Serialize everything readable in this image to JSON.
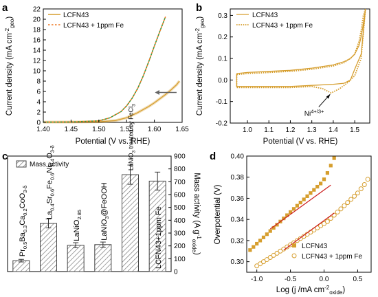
{
  "colors": {
    "primary": "#d69e2e",
    "fe": "#ee7721",
    "fe_a": "#2f9a3e",
    "fit": "#cc1d1d",
    "axis": "#000000",
    "bar_fill": "#ffffff",
    "bar_hatch": "#7a7a7a"
  },
  "chart_data": [
    {
      "panel": "a",
      "type": "line",
      "xlabel": "Potential (V vs. RHE)",
      "ylabel": "Current density (mA cm",
      "ylabel_sup": "-2",
      "ylabel_sub": "geo",
      "ylabel_end": ")",
      "xlim": [
        1.4,
        1.65
      ],
      "ylim": [
        0,
        22
      ],
      "xticks": [
        "1.40",
        "1.45",
        "1.50",
        "1.55",
        "1.60",
        "1.65"
      ],
      "yticks": [
        "0",
        "2",
        "4",
        "6",
        "8",
        "10",
        "12",
        "14",
        "16",
        "18",
        "20",
        "22"
      ],
      "legend_position": "top-left",
      "series": [
        {
          "name": "LCFN43",
          "style": "solid",
          "x": [
            1.4,
            1.45,
            1.5,
            1.53,
            1.55,
            1.57,
            1.59,
            1.6,
            1.61,
            1.62,
            1.63,
            1.64,
            1.645
          ],
          "y": [
            0.05,
            0.07,
            0.12,
            0.35,
            0.9,
            1.9,
            3.1,
            3.8,
            4.6,
            5.4,
            6.3,
            7.3,
            8.0
          ]
        },
        {
          "name": "LCFN43 + 1ppm Fe",
          "style": "dotted",
          "x": [
            1.4,
            1.45,
            1.5,
            1.52,
            1.54,
            1.55,
            1.56,
            1.57,
            1.58,
            1.59,
            1.6,
            1.61,
            1.62
          ],
          "y": [
            0.05,
            0.08,
            0.3,
            0.9,
            2.1,
            3.2,
            4.7,
            6.6,
            9.0,
            11.8,
            14.8,
            17.7,
            20.5
          ]
        }
      ]
    },
    {
      "panel": "b",
      "type": "line",
      "xlabel": "Potential (V vs. RHE)",
      "ylabel": "Current density (mA cm",
      "ylabel_sup": "-2",
      "ylabel_sub": "geo",
      "ylabel_end": ")",
      "xlim": [
        0.92,
        1.57
      ],
      "ylim": [
        -0.2,
        0.33
      ],
      "xticks": [
        "1.0",
        "1.1",
        "1.2",
        "1.3",
        "1.4",
        "1.5"
      ],
      "yticks": [
        "-0.2",
        "-0.1",
        "0.0",
        "0.1",
        "0.2",
        "0.3"
      ],
      "legend_position": "top-left",
      "annotation": {
        "text_main": "Ni",
        "text_sup": "4+/3+",
        "x": 1.39,
        "y": -0.055
      },
      "series": [
        {
          "name": "LCFN43",
          "style": "solid",
          "x": [
            0.95,
            1.0,
            1.1,
            1.2,
            1.3,
            1.4,
            1.45,
            1.48,
            1.5,
            1.51,
            1.52,
            1.53,
            1.54,
            1.55,
            1.53,
            1.5,
            1.48,
            1.45,
            1.4,
            1.3,
            1.2,
            1.1,
            1.0,
            0.95,
            0.95
          ],
          "y": [
            0.03,
            0.035,
            0.04,
            0.045,
            0.055,
            0.07,
            0.085,
            0.1,
            0.12,
            0.14,
            0.16,
            0.2,
            0.26,
            0.33,
            0.12,
            0.05,
            0.0,
            -0.015,
            -0.02,
            -0.025,
            -0.03,
            -0.03,
            -0.03,
            -0.03,
            0.03
          ]
        },
        {
          "name": "LCFN43 + 1ppm Fe",
          "style": "dotted",
          "x": [
            0.95,
            1.0,
            1.1,
            1.2,
            1.3,
            1.4,
            1.45,
            1.48,
            1.5,
            1.51,
            1.52,
            1.53,
            1.54,
            1.55,
            1.53,
            1.5,
            1.47,
            1.43,
            1.39,
            1.35,
            1.3,
            1.2,
            1.1,
            1.0,
            0.95,
            0.95
          ],
          "y": [
            0.025,
            0.03,
            0.035,
            0.04,
            0.05,
            0.065,
            0.08,
            0.1,
            0.12,
            0.15,
            0.18,
            0.23,
            0.3,
            0.33,
            0.1,
            0.02,
            -0.01,
            -0.04,
            -0.06,
            -0.04,
            -0.03,
            -0.035,
            -0.035,
            -0.035,
            -0.035,
            0.025
          ]
        }
      ]
    },
    {
      "panel": "c",
      "type": "bar",
      "ylabel": "Mass activity (A g",
      "ylabel_sup": "-1",
      "ylabel_sub": "oxide",
      "ylabel_end": ")",
      "ylim": [
        0,
        900
      ],
      "yticks": [
        "0",
        "100",
        "200",
        "300",
        "400",
        "500",
        "600",
        "700",
        "800",
        "900"
      ],
      "legend": "Mass activity",
      "legend_position": "top-left",
      "categories": [
        {
          "parts": [
            [
              "Pr",
              "n"
            ],
            [
              "0.5",
              "sub"
            ],
            [
              "Ba",
              "n"
            ],
            [
              "0.3",
              "sub"
            ],
            [
              "Ca",
              "n"
            ],
            [
              "0.2",
              "sub"
            ],
            [
              "CoO",
              "n"
            ],
            [
              "3-δ",
              "sub"
            ]
          ]
        },
        {
          "parts": [
            [
              "La",
              "n"
            ],
            [
              "0.4",
              "sub"
            ],
            [
              "Sr",
              "n"
            ],
            [
              "0.6",
              "sub"
            ],
            [
              "Fe",
              "n"
            ],
            [
              "0.6",
              "sub"
            ],
            [
              "Ni",
              "n"
            ],
            [
              "0.4",
              "sub"
            ],
            [
              "O",
              "n"
            ],
            [
              "3-δ",
              "sub"
            ]
          ]
        },
        {
          "parts": [
            [
              "LaNiO",
              "n"
            ],
            [
              "2.85",
              "sub"
            ]
          ]
        },
        {
          "parts": [
            [
              "LaNiO",
              "n"
            ],
            [
              "3",
              "sub"
            ],
            [
              "@FeOOH",
              "n"
            ]
          ]
        },
        {
          "parts": [
            [
              "LaNiO",
              "n"
            ],
            [
              "3",
              "sub"
            ],
            [
              " treated by FeCl",
              "n"
            ],
            [
              "3",
              "sub"
            ]
          ]
        },
        {
          "parts": [
            [
              "LCFN43+1ppm Fe",
              "n"
            ]
          ]
        }
      ],
      "values": [
        85,
        375,
        205,
        210,
        755,
        705
      ],
      "errors": [
        10,
        35,
        20,
        20,
        75,
        70
      ]
    },
    {
      "panel": "d",
      "type": "scatter",
      "xlabel": "Log (j /mA cm",
      "xlabel_sup": "-2",
      "xlabel_sub": "oxide",
      "xlabel_end": ")",
      "ylabel": "Overpotential (V)",
      "xlim": [
        -1.15,
        0.7
      ],
      "ylim": [
        0.29,
        0.4
      ],
      "xticks": [
        "-1.0",
        "-0.5",
        "0.0",
        "0.5"
      ],
      "yticks": [
        "0.30",
        "0.32",
        "0.34",
        "0.36",
        "0.38",
        "0.40"
      ],
      "legend_position": "bottom-right",
      "series": [
        {
          "name": "LCFN43",
          "marker": "filled-square",
          "x": [
            -1.1,
            -1.05,
            -1.0,
            -0.95,
            -0.9,
            -0.85,
            -0.8,
            -0.75,
            -0.7,
            -0.65,
            -0.6,
            -0.55,
            -0.5,
            -0.45,
            -0.4,
            -0.35,
            -0.3,
            -0.25,
            -0.2,
            -0.15,
            -0.1,
            -0.05,
            0.0,
            0.05,
            0.1,
            0.15
          ],
          "y": [
            0.311,
            0.314,
            0.317,
            0.32,
            0.323,
            0.326,
            0.329,
            0.332,
            0.335,
            0.338,
            0.341,
            0.344,
            0.347,
            0.35,
            0.353,
            0.356,
            0.359,
            0.362,
            0.365,
            0.368,
            0.371,
            0.374,
            0.378,
            0.384,
            0.391,
            0.398
          ]
        },
        {
          "name": "LCFN43 + 1ppm Fe",
          "marker": "open-circle",
          "x": [
            -1.0,
            -0.95,
            -0.9,
            -0.85,
            -0.8,
            -0.75,
            -0.7,
            -0.65,
            -0.6,
            -0.55,
            -0.5,
            -0.45,
            -0.4,
            -0.35,
            -0.3,
            -0.25,
            -0.2,
            -0.15,
            -0.1,
            -0.05,
            0.0,
            0.05,
            0.1,
            0.15,
            0.2,
            0.25,
            0.3,
            0.35,
            0.4,
            0.45,
            0.5,
            0.55,
            0.6,
            0.65
          ],
          "y": [
            0.296,
            0.298,
            0.3,
            0.302,
            0.304,
            0.306,
            0.308,
            0.31,
            0.312,
            0.314,
            0.316,
            0.318,
            0.32,
            0.322,
            0.324,
            0.326,
            0.328,
            0.33,
            0.332,
            0.334,
            0.336,
            0.338,
            0.341,
            0.344,
            0.347,
            0.35,
            0.353,
            0.356,
            0.359,
            0.362,
            0.365,
            0.369,
            0.373,
            0.378
          ]
        }
      ],
      "fits": [
        {
          "x": [
            -0.8,
            0.1
          ],
          "y": [
            0.331,
            0.3725
          ]
        },
        {
          "x": [
            -0.6,
            0.15
          ],
          "y": [
            0.311,
            0.346
          ]
        }
      ]
    }
  ]
}
